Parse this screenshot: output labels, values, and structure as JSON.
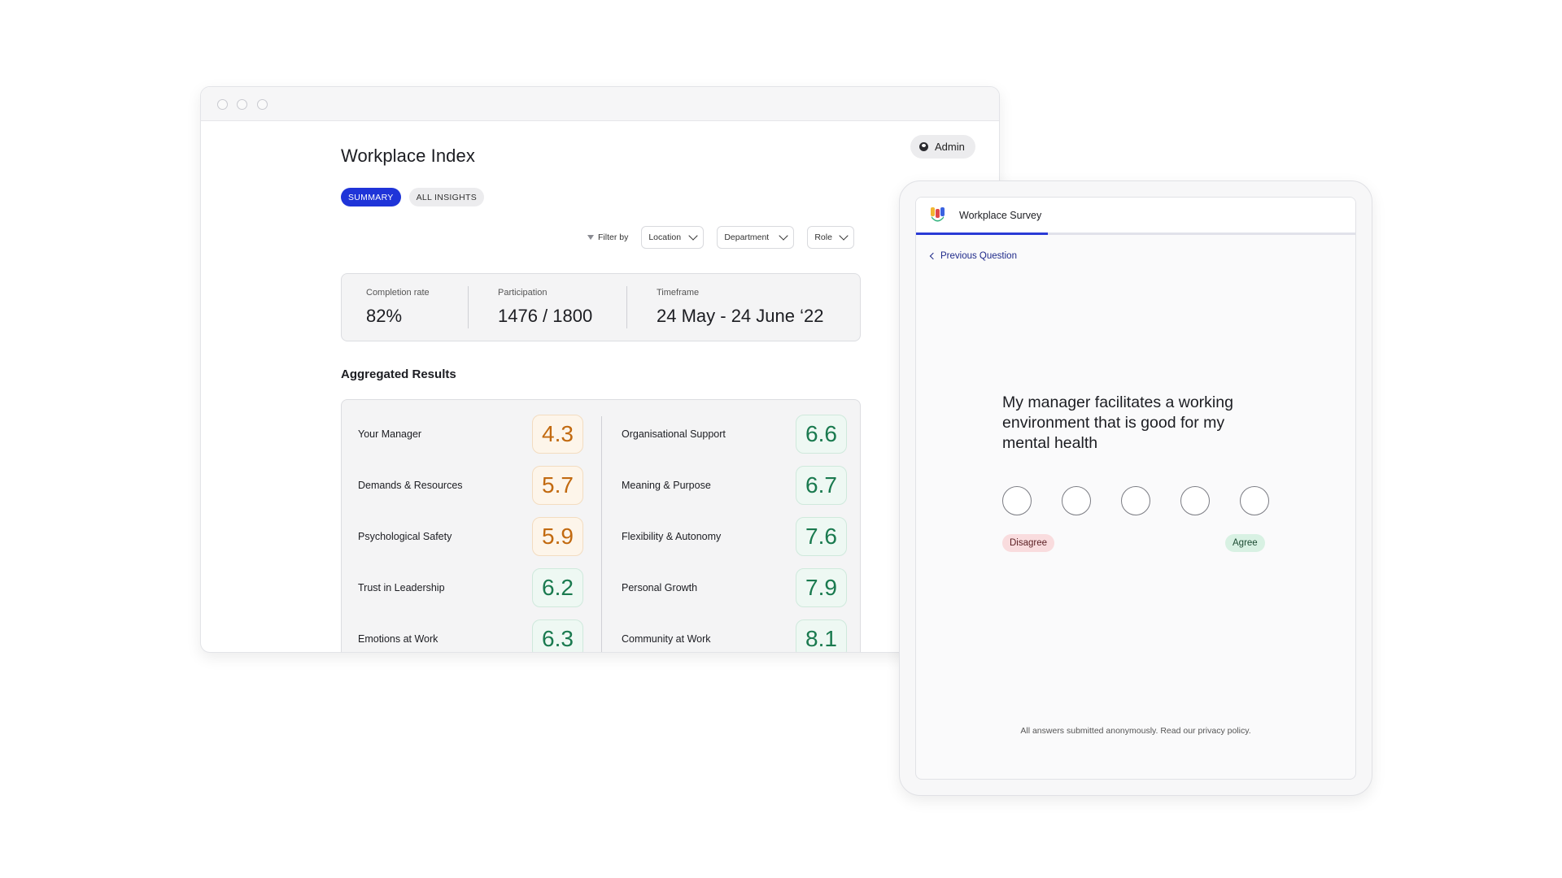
{
  "dashboard": {
    "title": "Workplace Index",
    "user_chip": "Admin",
    "tabs": [
      "SUMMARY",
      "ALL INSIGHTS"
    ],
    "filter_label": "Filter by",
    "filters": [
      "Location",
      "Department",
      "Role"
    ],
    "stats": [
      {
        "label": "Completion rate",
        "value": "82%"
      },
      {
        "label": "Participation",
        "value": "1476 / 1800"
      },
      {
        "label": "Timeframe",
        "value": "24 May - 24 June ‘22"
      }
    ],
    "section_title": "Aggregated Results",
    "results_left": [
      {
        "label": "Your Manager",
        "score": "4.3"
      },
      {
        "label": "Demands & Resources",
        "score": "5.7"
      },
      {
        "label": "Psychological Safety",
        "score": "5.9"
      },
      {
        "label": "Trust in Leadership",
        "score": "6.2"
      },
      {
        "label": "Emotions at Work",
        "score": "6.3"
      }
    ],
    "results_right": [
      {
        "label": "Organisational Support",
        "score": "6.6"
      },
      {
        "label": "Meaning & Purpose",
        "score": "6.7"
      },
      {
        "label": "Flexibility & Autonomy",
        "score": "7.6"
      },
      {
        "label": "Personal Growth",
        "score": "7.9"
      },
      {
        "label": "Community at Work",
        "score": "8.1"
      }
    ],
    "colors": {
      "amber": "#c26a10",
      "green": "#1a7a4f",
      "accent": "#1f34d8"
    }
  },
  "survey": {
    "title": "Workplace Survey",
    "progress_fraction": 0.3,
    "previous": "Previous Question",
    "question": "My manager facilitates a working environment that is good for my mental health",
    "option_count": 5,
    "scale_low": "Disagree",
    "scale_high": "Agree",
    "footer": "All answers submitted anonymously. Read our privacy policy."
  }
}
